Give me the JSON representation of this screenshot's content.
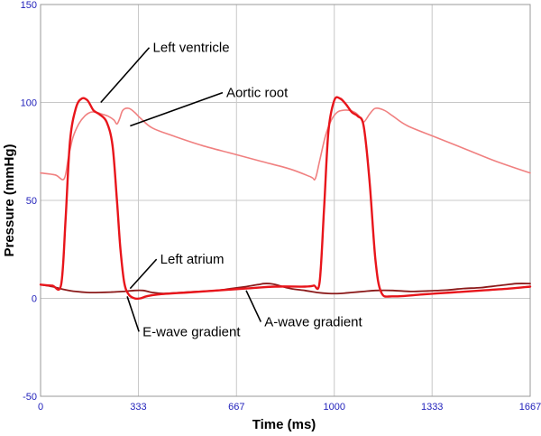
{
  "chart_data": {
    "type": "line",
    "title": "",
    "xlabel": "Time (ms)",
    "ylabel": "Pressure (mmHg)",
    "xlim": [
      0,
      1667
    ],
    "ylim": [
      -50,
      150
    ],
    "x_ticks": [
      0,
      333,
      667,
      1000,
      1333,
      1667
    ],
    "x_tick_labels": [
      "0",
      "333",
      "667",
      "1000",
      "1333",
      "1667"
    ],
    "y_ticks": [
      -50,
      0,
      50,
      100,
      150
    ],
    "y_tick_labels": [
      "-50",
      "0",
      "50",
      "100",
      "150"
    ],
    "grid": true,
    "colors": {
      "left_ventricle": "#e8151b",
      "aortic_root": "#f08080",
      "left_atrium": "#8b1a1a",
      "gridline": "#c8c8c8",
      "tick_label": "#2222bb"
    },
    "series": [
      {
        "key": "left_ventricle",
        "x": [
          0,
          40,
          70,
          85,
          100,
          120,
          140,
          160,
          180,
          200,
          225,
          245,
          260,
          272,
          285,
          300,
          320,
          340,
          360,
          400,
          500,
          600,
          700,
          800,
          900,
          930,
          950,
          965,
          980,
          1000,
          1020,
          1040,
          1060,
          1080,
          1100,
          1120,
          1140,
          1160,
          1200,
          1300,
          1400,
          1500,
          1600,
          1667
        ],
        "y": [
          7,
          6.5,
          7,
          40,
          80,
          97,
          102,
          101,
          96,
          94,
          90,
          78,
          50,
          25,
          8,
          2,
          0,
          0,
          1,
          2,
          3,
          4,
          5,
          6,
          6,
          6.5,
          8,
          45,
          85,
          101,
          102,
          99,
          95,
          93,
          88,
          60,
          20,
          3,
          1,
          2,
          3,
          4,
          5,
          6
        ]
      },
      {
        "key": "aortic_root",
        "x": [
          0,
          50,
          80,
          95,
          110,
          130,
          150,
          170,
          190,
          210,
          230,
          250,
          260,
          270,
          280,
          300,
          320,
          340,
          380,
          450,
          550,
          650,
          750,
          850,
          920,
          935,
          950,
          970,
          990,
          1010,
          1030,
          1050,
          1070,
          1085,
          1100,
          1120,
          1140,
          1170,
          1200,
          1250,
          1350,
          1450,
          1550,
          1667
        ],
        "y": [
          64,
          63,
          61,
          72,
          82,
          89,
          93,
          95,
          95,
          94,
          93,
          91,
          89,
          92,
          96,
          97,
          95,
          92,
          87,
          83,
          78,
          74,
          70,
          66,
          62,
          61,
          70,
          83,
          91,
          95,
          96,
          96,
          95,
          93,
          90,
          94,
          97,
          96,
          93,
          88,
          82,
          76,
          70,
          64
        ]
      },
      {
        "key": "left_atrium",
        "x": [
          0,
          40,
          80,
          120,
          160,
          200,
          240,
          280,
          320,
          350,
          380,
          420,
          480,
          540,
          600,
          650,
          700,
          740,
          760,
          780,
          800,
          850,
          900,
          940,
          980,
          1020,
          1060,
          1100,
          1140,
          1200,
          1260,
          1320,
          1380,
          1440,
          1500,
          1560,
          1620,
          1667
        ],
        "y": [
          7,
          6,
          4.5,
          3.5,
          3,
          3,
          3.2,
          3.5,
          4,
          4,
          3,
          2.5,
          3,
          3.5,
          4,
          5,
          6,
          7,
          7.5,
          7.5,
          7,
          5,
          4,
          3,
          2.5,
          2.5,
          3,
          3.5,
          4,
          4,
          3.5,
          3.8,
          4.2,
          5,
          5.5,
          6.5,
          7.5,
          7.5
        ]
      }
    ],
    "annotations": [
      {
        "text": "Left ventricle",
        "series": "left_ventricle",
        "point_x": 205,
        "point_y": 100,
        "label_x": 370,
        "label_y": 128
      },
      {
        "text": "Aortic root",
        "series": "aortic_root",
        "point_x": 305,
        "point_y": 88,
        "label_x": 620,
        "label_y": 105
      },
      {
        "text": "Left atrium",
        "series": "left_atrium",
        "point_x": 305,
        "point_y": 5,
        "label_x": 395,
        "label_y": 20
      },
      {
        "text": "E-wave gradient",
        "series": "left_ventricle",
        "point_x": 295,
        "point_y": 1,
        "label_x": 335,
        "label_y": -17
      },
      {
        "text": "A-wave gradient",
        "series": "left_atrium",
        "point_x": 700,
        "point_y": 4,
        "label_x": 750,
        "label_y": -12
      }
    ]
  }
}
